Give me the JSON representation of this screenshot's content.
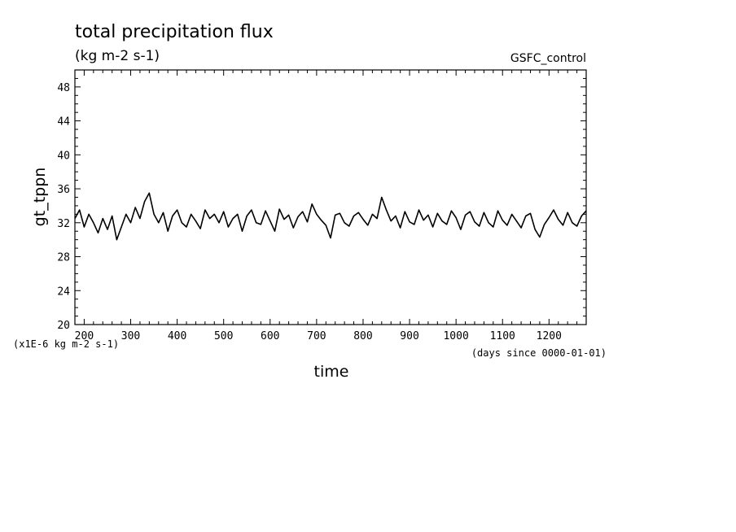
{
  "chart_data": {
    "type": "line",
    "title": "total precipitation flux",
    "subtitle": "(kg m-2 s-1)",
    "run_label": "GSFC_control",
    "xlabel": "time",
    "ylabel": "gt_tppn",
    "y_scale_note": "(x1E-6 kg m-2 s-1)",
    "x_units_note": "(days since 0000-01-01)",
    "xlim": [
      180,
      1280
    ],
    "ylim": [
      20,
      50
    ],
    "x_ticks": [
      "200",
      "300",
      "400",
      "500",
      "600",
      "700",
      "800",
      "900",
      "1000",
      "1100",
      "1200"
    ],
    "y_ticks": [
      "20",
      "24",
      "28",
      "32",
      "36",
      "40",
      "44",
      "48"
    ],
    "grid": false,
    "line_color": "#000000",
    "series": [
      {
        "x": [
          180,
          190,
          200,
          210,
          220,
          230,
          240,
          250,
          260,
          270,
          280,
          290,
          300,
          310,
          320,
          330,
          340,
          350,
          360,
          370,
          380,
          390,
          400,
          410,
          420,
          430,
          440,
          450,
          460,
          470,
          480,
          490,
          500,
          510,
          520,
          530,
          540,
          550,
          560,
          570,
          580,
          590,
          600,
          610,
          620,
          630,
          640,
          650,
          660,
          670,
          680,
          690,
          700,
          710,
          720,
          730,
          740,
          750,
          760,
          770,
          780,
          790,
          800,
          810,
          820,
          830,
          840,
          850,
          860,
          870,
          880,
          890,
          900,
          910,
          920,
          930,
          940,
          950,
          960,
          970,
          980,
          990,
          1000,
          1010,
          1020,
          1030,
          1040,
          1050,
          1060,
          1070,
          1080,
          1090,
          1100,
          1110,
          1120,
          1130,
          1140,
          1150,
          1160,
          1170,
          1180,
          1190,
          1200,
          1210,
          1220,
          1230,
          1240,
          1250,
          1260,
          1270,
          1280
        ],
        "y": [
          32.5,
          33.5,
          31.5,
          33,
          32,
          30.8,
          32.5,
          31.2,
          32.8,
          30,
          31.5,
          33,
          32,
          33.8,
          32.5,
          34.5,
          35.5,
          33,
          32,
          33.2,
          31,
          32.8,
          33.5,
          32,
          31.5,
          33,
          32.2,
          31.3,
          33.5,
          32.5,
          33,
          32,
          33.3,
          31.5,
          32.5,
          33,
          31,
          32.8,
          33.5,
          32,
          31.8,
          33.4,
          32.2,
          31,
          33.6,
          32.4,
          32.9,
          31.4,
          32.7,
          33.3,
          32.1,
          34.2,
          33,
          32.3,
          31.7,
          30.2,
          32.9,
          33.1,
          32,
          31.6,
          32.8,
          33.2,
          32.4,
          31.7,
          33,
          32.5,
          35,
          33.5,
          32.2,
          32.8,
          31.4,
          33.3,
          32.1,
          31.8,
          33.5,
          32.3,
          32.9,
          31.5,
          33.1,
          32.2,
          31.8,
          33.4,
          32.6,
          31.2,
          32.9,
          33.3,
          32.1,
          31.6,
          33.2,
          32,
          31.5,
          33.4,
          32.3,
          31.7,
          33,
          32.2,
          31.4,
          32.8,
          33.1,
          31.2,
          30.3,
          31.8,
          32.6,
          33.5,
          32.4,
          31.7,
          33.2,
          32,
          31.6,
          32.8,
          33.4
        ]
      }
    ]
  }
}
